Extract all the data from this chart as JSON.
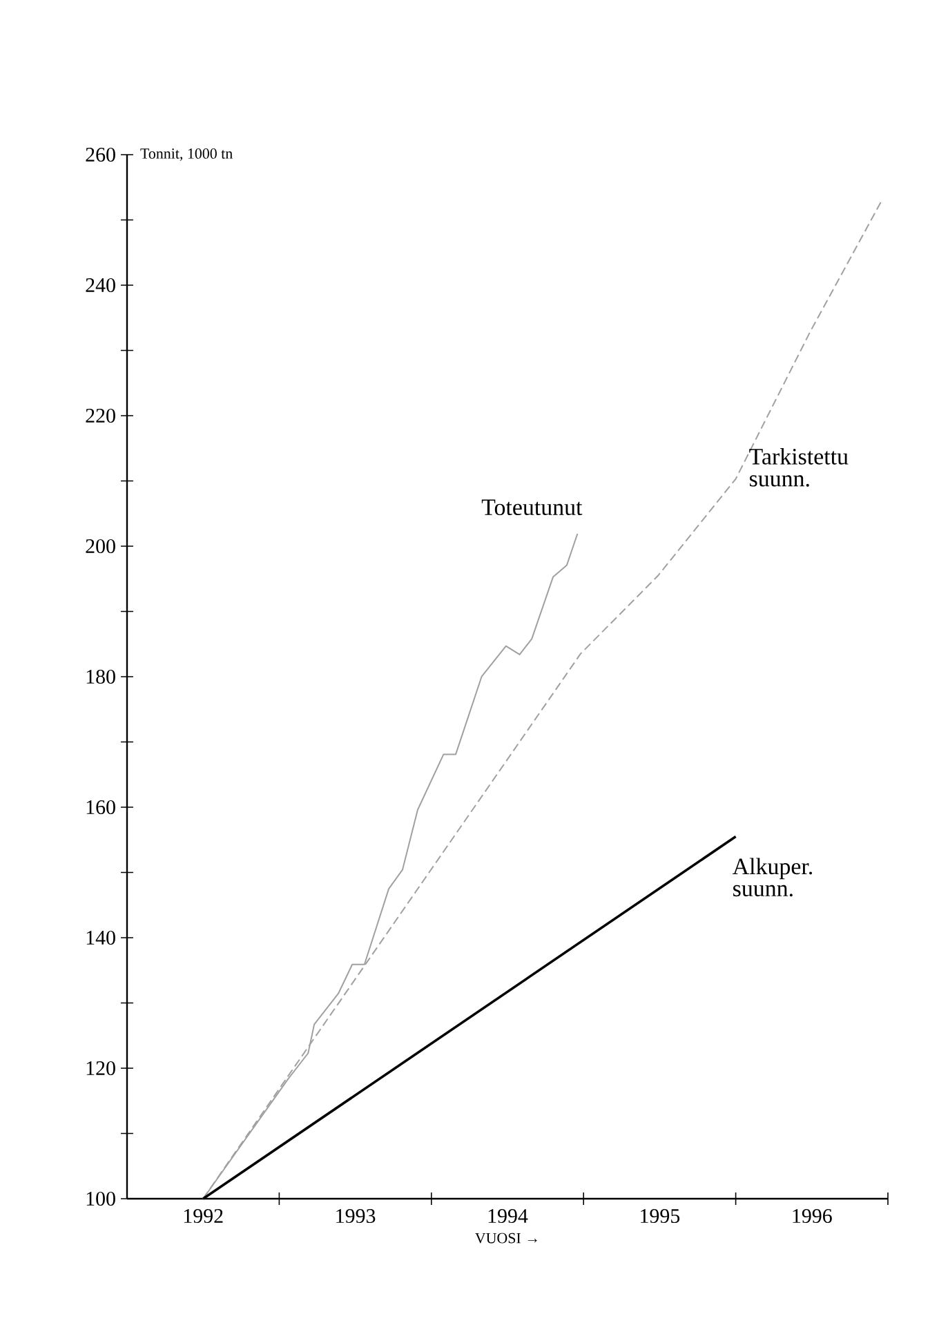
{
  "chart_data": {
    "type": "line",
    "xlabel": "VUOSI →",
    "ylabel": "Tonnit, 1000 tn",
    "xlim": [
      1991.5,
      1996.5
    ],
    "ylim": [
      100,
      260
    ],
    "xticks": [
      {
        "value": 1992,
        "label": "1992"
      },
      {
        "value": 1993,
        "label": "1993"
      },
      {
        "value": 1994,
        "label": "1994"
      },
      {
        "value": 1995,
        "label": "1995"
      },
      {
        "value": 1996,
        "label": "1996"
      },
      {
        "value": 1992.5,
        "label": null
      },
      {
        "value": 1993.5,
        "label": null
      },
      {
        "value": 1994.5,
        "label": null
      },
      {
        "value": 1995.5,
        "label": null
      },
      {
        "value": 1996.5,
        "label": null
      }
    ],
    "yticks": [
      100,
      120,
      140,
      160,
      180,
      200,
      220,
      240,
      260,
      {
        "value": 110,
        "label": null
      },
      {
        "value": 130,
        "label": null
      },
      {
        "value": 150,
        "label": null
      },
      {
        "value": 170,
        "label": null
      },
      {
        "value": 190,
        "label": null
      },
      {
        "value": 210,
        "label": null
      },
      {
        "value": 230,
        "label": null
      },
      {
        "value": 250,
        "label": null
      }
    ],
    "series": [
      {
        "name": "Toteutunut",
        "color": "#a0a0a0",
        "line_style": "solid",
        "x": [
          1992.0,
          1992.56,
          1992.69,
          1992.73,
          1992.89,
          1992.98,
          1993.06,
          1993.22,
          1993.31,
          1993.41,
          1993.58,
          1993.66,
          1993.83,
          1993.99,
          1994.08,
          1994.16,
          1994.3,
          1994.39,
          1994.46
        ],
        "values": [
          100,
          118.4,
          122.3,
          126.7,
          131.5,
          135.9,
          135.9,
          147.5,
          150.4,
          159.6,
          168.1,
          168.1,
          180.0,
          184.7,
          183.4,
          185.8,
          195.3,
          197.1,
          201.9
        ]
      },
      {
        "name": "Tarkistettu suunn.",
        "color": "#a0a0a0",
        "line_style": "dashed",
        "x": [
          1992.0,
          1994.48,
          1994.99,
          1995.5,
          1995.99,
          1996.46
        ],
        "values": [
          100,
          183.5,
          195.5,
          210.3,
          232.9,
          253.0
        ]
      },
      {
        "name": "Alkuper. suunn.",
        "color": "#000000",
        "line_style": "solid",
        "x": [
          1992.0,
          1995.5
        ],
        "values": [
          100,
          155.5
        ]
      }
    ]
  }
}
